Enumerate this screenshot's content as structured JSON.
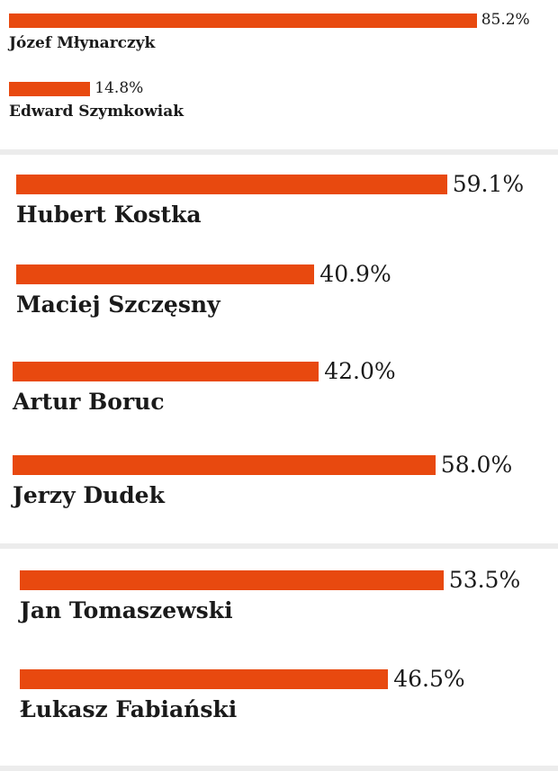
{
  "colors": {
    "bar": "#e8490f",
    "divider": "#ececec"
  },
  "chart_data": [
    {
      "type": "bar",
      "orientation": "horizontal",
      "unit": "%",
      "xlim": [
        0,
        100
      ],
      "bars": [
        {
          "name": "Józef Młynarczyk",
          "value": 85.2,
          "label": "85.2%"
        },
        {
          "name": "Edward Szymkowiak",
          "value": 14.8,
          "label": "14.8%"
        }
      ]
    },
    {
      "type": "bar",
      "orientation": "horizontal",
      "unit": "%",
      "xlim": [
        0,
        100
      ],
      "bars": [
        {
          "name": "Hubert Kostka",
          "value": 59.1,
          "label": "59.1%"
        },
        {
          "name": "Maciej Szczęsny",
          "value": 40.9,
          "label": "40.9%"
        },
        {
          "name": "Artur Boruc",
          "value": 42.0,
          "label": "42.0%"
        },
        {
          "name": "Jerzy Dudek",
          "value": 58.0,
          "label": "58.0%"
        }
      ]
    },
    {
      "type": "bar",
      "orientation": "horizontal",
      "unit": "%",
      "xlim": [
        0,
        100
      ],
      "bars": [
        {
          "name": "Jan Tomaszewski",
          "value": 53.5,
          "label": "53.5%"
        },
        {
          "name": "Łukasz Fabiański",
          "value": 46.5,
          "label": "46.5%"
        }
      ]
    }
  ]
}
